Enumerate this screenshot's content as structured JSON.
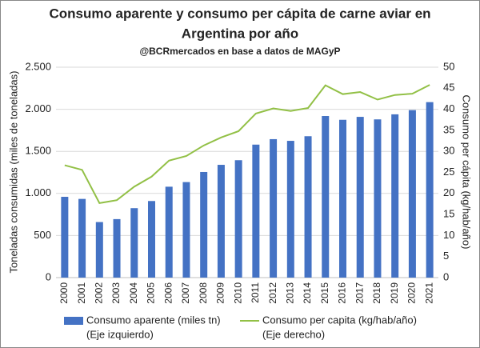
{
  "chart_data": {
    "type": "bar_line",
    "title": [
      "Consumo aparente y consumo per cápita de carne aviar en",
      "Argentina por año"
    ],
    "subtitle": "@BCRmercados en base a datos de MAGyP",
    "y_label": "Toneladas consumidas (miles de toneladas)",
    "y2_label": "Consumo per cápita (kg/hab/año)",
    "categories": [
      "2000",
      "2001",
      "2002",
      "2003",
      "2004",
      "2005",
      "2006",
      "2007",
      "2008",
      "2009",
      "2010",
      "2011",
      "2012",
      "2013",
      "2014",
      "2015",
      "2016",
      "2017",
      "2018",
      "2019",
      "2020",
      "2021"
    ],
    "series": [
      {
        "name": "Consumo aparente (miles tn)",
        "legend_note": "(Eje izquierdo)",
        "type": "bar",
        "color": "#4472c4",
        "values": [
          960,
          935,
          660,
          695,
          825,
          910,
          1080,
          1135,
          1255,
          1340,
          1395,
          1580,
          1645,
          1625,
          1680,
          1920,
          1875,
          1910,
          1880,
          1940,
          1990,
          2085
        ]
      },
      {
        "name": "Consumo per capita (kg/hab/año)",
        "legend_note": "(Eje derecho)",
        "type": "line",
        "axis": "y2",
        "color": "#92c046",
        "values": [
          26.7,
          25.6,
          17.7,
          18.4,
          21.6,
          24.0,
          27.8,
          28.9,
          31.4,
          33.3,
          34.8,
          39.0,
          40.2,
          39.6,
          40.3,
          45.7,
          43.6,
          44.1,
          42.3,
          43.4,
          43.7,
          45.8
        ]
      }
    ],
    "ylim": [
      0,
      2500
    ],
    "yticks": [
      0,
      500,
      {
        "value": 1000,
        "label": "1.000"
      },
      {
        "value": 1500,
        "label": "1.500"
      },
      {
        "value": 2000,
        "label": "2.000"
      },
      {
        "value": 2500,
        "label": "2.500"
      }
    ],
    "y2lim": [
      0,
      50
    ],
    "y2ticks": [
      0,
      5,
      10,
      15,
      20,
      25,
      30,
      35,
      40,
      45,
      50
    ],
    "grid": true
  }
}
